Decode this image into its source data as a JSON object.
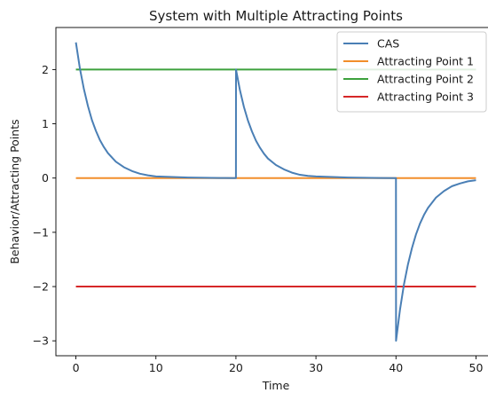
{
  "chart_data": {
    "type": "line",
    "title": "System with Multiple Attracting Points",
    "xlabel": "Time",
    "ylabel": "Behavior/Attracting Points",
    "xlim": [
      -2.5,
      52.5
    ],
    "ylim": [
      -3.275,
      2.775
    ],
    "xticks": [
      0,
      10,
      20,
      30,
      40,
      50
    ],
    "yticks": [
      -3,
      -2,
      -1,
      0,
      1,
      2
    ],
    "xtick_labels": [
      "0",
      "10",
      "20",
      "30",
      "40",
      "50"
    ],
    "ytick_labels": [
      "−3",
      "−2",
      "−1",
      "0",
      "1",
      "2"
    ],
    "grid": false,
    "legend_position": "top-right",
    "series": [
      {
        "name": "CAS",
        "color": "#4a7fb5",
        "x": [
          0,
          0.5,
          1,
          1.5,
          2,
          2.5,
          3,
          3.5,
          4,
          5,
          6,
          7,
          8,
          9,
          10,
          12,
          14,
          16,
          18,
          20,
          20.01,
          20.5,
          21,
          21.5,
          22,
          22.5,
          23,
          23.5,
          24,
          25,
          26,
          27,
          28,
          29,
          30,
          32,
          34,
          36,
          38,
          40,
          40.01,
          40.5,
          41,
          41.5,
          42,
          42.5,
          43,
          43.5,
          44,
          45,
          46,
          47,
          48,
          49,
          50
        ],
        "y": [
          2.5,
          2.02,
          1.64,
          1.33,
          1.07,
          0.87,
          0.7,
          0.57,
          0.46,
          0.3,
          0.2,
          0.13,
          0.08,
          0.05,
          0.03,
          0.02,
          0.01,
          0.005,
          0.002,
          0.0,
          2.0,
          1.62,
          1.31,
          1.06,
          0.86,
          0.69,
          0.56,
          0.45,
          0.36,
          0.24,
          0.16,
          0.1,
          0.06,
          0.04,
          0.03,
          0.02,
          0.01,
          0.005,
          0.002,
          0.0,
          -3.0,
          -2.43,
          -1.96,
          -1.59,
          -1.29,
          -1.04,
          -0.84,
          -0.68,
          -0.55,
          -0.36,
          -0.24,
          -0.15,
          -0.1,
          -0.06,
          -0.04
        ]
      },
      {
        "name": "Attracting Point 1",
        "color": "#f28e2b",
        "x": [
          0,
          50
        ],
        "y": [
          0,
          0
        ]
      },
      {
        "name": "Attracting Point 2",
        "color": "#3ca13c",
        "x": [
          0,
          50
        ],
        "y": [
          2,
          2
        ]
      },
      {
        "name": "Attracting Point 3",
        "color": "#d62728",
        "x": [
          0,
          50
        ],
        "y": [
          -2,
          -2
        ]
      }
    ]
  }
}
